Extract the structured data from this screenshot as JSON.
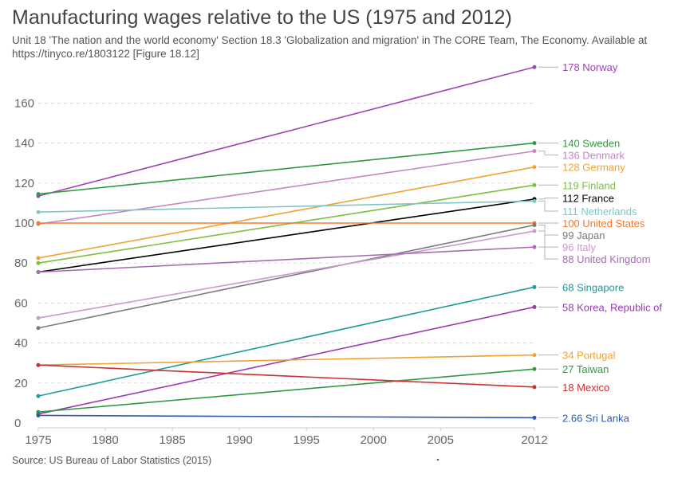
{
  "header": {
    "title": "Manufacturing wages relative to the US (1975 and 2012)",
    "subtitle": "Unit 18 'The nation and the world economy' Section 18.3 'Globalization and migration' in The CORE Team, The Economy. Available at https://tinyco.re/1803122 [Figure 18.12]"
  },
  "footer": {
    "source": "Source: US Bureau of Labor Statistics (2015)"
  },
  "chart_data": {
    "type": "line",
    "title": "Manufacturing wages relative to the US (1975 and 2012)",
    "xlabel": "",
    "ylabel": "",
    "x": [
      1975,
      2012
    ],
    "xlim": [
      1975,
      2012
    ],
    "ylim": [
      0,
      178
    ],
    "x_ticks": [
      1975,
      1980,
      1985,
      1990,
      1995,
      2000,
      2005,
      2012
    ],
    "y_ticks": [
      0,
      20,
      40,
      60,
      80,
      100,
      120,
      140,
      160
    ],
    "grid": true,
    "legend": "labels at right end of lines",
    "series": [
      {
        "name": "Norway",
        "values": [
          113.5,
          178
        ],
        "label": "178 Norway",
        "color": "#9b46b3",
        "label_y": 178
      },
      {
        "name": "Sweden",
        "values": [
          114.5,
          140
        ],
        "label": "140 Sweden",
        "color": "#2e9a3e",
        "label_y": 140
      },
      {
        "name": "Denmark",
        "values": [
          99.5,
          136
        ],
        "label": "136 Denmark",
        "color": "#c586c5",
        "label_y": 134
      },
      {
        "name": "Germany",
        "values": [
          82.5,
          128
        ],
        "label": "128 Germany",
        "color": "#f2a230",
        "label_y": 128
      },
      {
        "name": "Finland",
        "values": [
          80,
          119
        ],
        "label": "119 Finland",
        "color": "#7cbf3c",
        "label_y": 119
      },
      {
        "name": "France",
        "values": [
          75.5,
          112
        ],
        "label": "112 France",
        "color": "#000000",
        "label_y": 112.5
      },
      {
        "name": "Netherlands",
        "values": [
          105.5,
          111
        ],
        "label": "111 Netherlands",
        "color": "#7fc6c9",
        "label_y": 106
      },
      {
        "name": "United States",
        "values": [
          100,
          100
        ],
        "label": "100 United States",
        "color": "#f27a30",
        "label_y": 100
      },
      {
        "name": "Japan",
        "values": [
          47.5,
          99
        ],
        "label": "99 Japan",
        "color": "#7b7b7b",
        "label_y": 94
      },
      {
        "name": "Italy",
        "values": [
          52.5,
          96
        ],
        "label": "96 Italy",
        "color": "#cc99cc",
        "label_y": 88
      },
      {
        "name": "United Kingdom",
        "values": [
          75.5,
          88
        ],
        "label": "88 United Kingdom",
        "color": "#a86bb5",
        "label_y": 82
      },
      {
        "name": "Singapore",
        "values": [
          13.5,
          68
        ],
        "label": "68 Singapore",
        "color": "#1f9a9a",
        "label_y": 68
      },
      {
        "name": "Korea, Republic of",
        "values": [
          4.5,
          58
        ],
        "label": "58 Korea, Republic of",
        "color": "#9b39b3",
        "label_y": 58
      },
      {
        "name": "Portugal",
        "values": [
          29,
          34
        ],
        "label": "34 Portugal",
        "color": "#f2a230",
        "label_y": 34
      },
      {
        "name": "Taiwan",
        "values": [
          5.5,
          27
        ],
        "label": "27 Taiwan",
        "color": "#2e9a3e",
        "label_y": 27
      },
      {
        "name": "Mexico",
        "values": [
          29,
          18
        ],
        "label": "18 Mexico",
        "color": "#c93030",
        "label_y": 18
      },
      {
        "name": "Sri Lanka",
        "values": [
          3.8,
          2.66
        ],
        "label": "2.66 Sri Lanka",
        "color": "#2e5aa8",
        "label_y": 2.66
      }
    ]
  }
}
